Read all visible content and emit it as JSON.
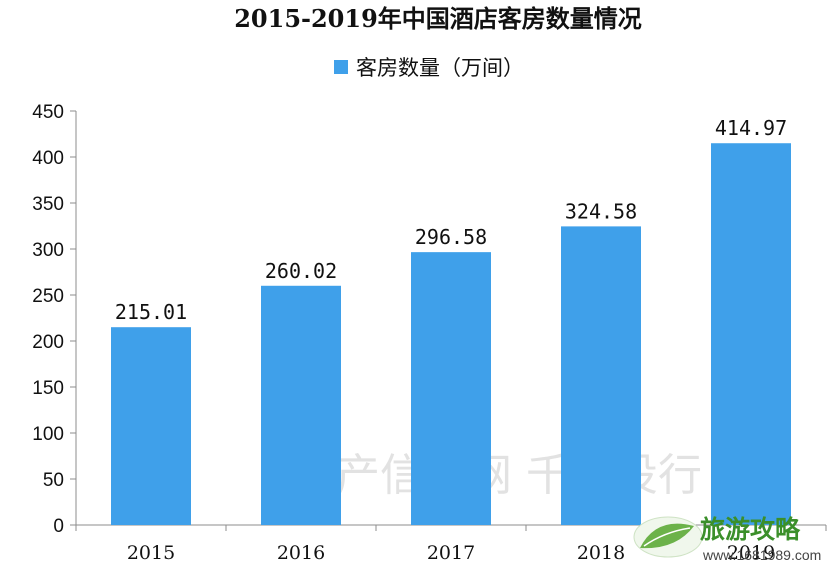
{
  "chart_data": {
    "type": "bar",
    "title": "2015-2019年中国酒店客房数量情况",
    "categories": [
      "2015",
      "2016",
      "2017",
      "2018",
      "2019"
    ],
    "series": [
      {
        "name": "客房数量（万间）",
        "values": [
          215.01,
          260.02,
          296.58,
          324.58,
          414.97
        ],
        "labels": [
          "215.01",
          "260.02",
          "296.58",
          "324.58",
          "414.97"
        ]
      }
    ],
    "ylim": [
      0,
      450
    ],
    "yticks": [
      0,
      50,
      100,
      150,
      200,
      250,
      300,
      350,
      400,
      450
    ],
    "legend_position": "top-center",
    "grid": false,
    "bar_color": "#3fa0ea"
  },
  "watermark": "资产信息网 千际投行",
  "stamp": {
    "title": "旅游攻略",
    "url": "www.1681989.com"
  }
}
